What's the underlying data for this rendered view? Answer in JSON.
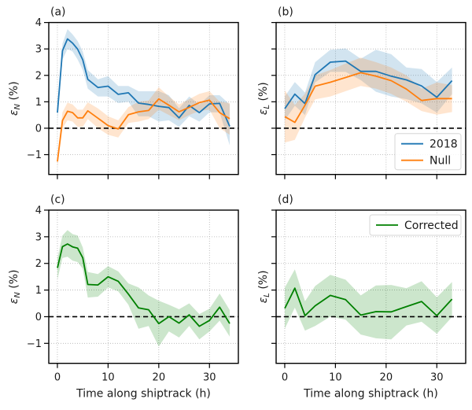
{
  "figure": {
    "xlabel": "Time along shiptrack (h)",
    "ylabel_N": "ε",
    "ylabel_N_sub": "N",
    "ylabel_L": "ε",
    "ylabel_L_sub": "L",
    "ylabel_suffix": " (%)"
  },
  "colors": {
    "s2018": "#1f77b4",
    "null": "#ff7f0e",
    "corrected": "#008000"
  },
  "chart_data": [
    {
      "type": "line",
      "panel": "(a)",
      "title": "(a)",
      "xlabel": "",
      "ylabel": "εN (%)",
      "xlim": [
        -1.7,
        35.7
      ],
      "ylim": [
        -1.75,
        4.0
      ],
      "xticks": [
        0,
        10,
        20,
        30
      ],
      "yticks": [
        -1,
        0,
        1,
        2,
        3,
        4
      ],
      "ytick_labels": [
        "−1",
        "0",
        "1",
        "2",
        "3",
        "4"
      ],
      "xtick_labels_visible": false,
      "grid": true,
      "zero_line": true,
      "legend": null,
      "series": [
        {
          "name": "2018",
          "color_key": "s2018",
          "x": [
            0,
            1,
            2,
            3,
            4,
            5,
            6,
            8,
            10,
            12,
            14,
            16,
            18,
            20,
            22,
            24,
            26,
            28,
            30,
            32,
            34
          ],
          "y": [
            0.59,
            2.93,
            3.38,
            3.22,
            2.99,
            2.59,
            1.85,
            1.54,
            1.59,
            1.28,
            1.34,
            0.95,
            0.9,
            0.83,
            0.78,
            0.39,
            0.86,
            0.59,
            0.92,
            0.94,
            0.07
          ],
          "lower": [
            0.3,
            2.6,
            3.0,
            2.9,
            2.6,
            2.2,
            1.5,
            1.2,
            1.2,
            0.95,
            1.0,
            0.45,
            0.45,
            0.25,
            0.3,
            0.05,
            0.45,
            0.25,
            0.6,
            0.6,
            -0.65
          ],
          "upper": [
            0.85,
            3.2,
            3.75,
            3.55,
            3.3,
            2.9,
            2.2,
            1.85,
            1.97,
            1.6,
            1.6,
            1.4,
            1.4,
            1.4,
            1.25,
            0.75,
            1.2,
            0.9,
            1.25,
            1.25,
            0.9
          ]
        },
        {
          "name": "Null",
          "color_key": "null",
          "x": [
            0,
            1,
            2,
            3,
            4,
            5,
            6,
            8,
            10,
            12,
            14,
            16,
            18,
            20,
            22,
            24,
            26,
            28,
            30,
            32,
            34
          ],
          "y": [
            -1.26,
            0.29,
            0.64,
            0.59,
            0.39,
            0.39,
            0.66,
            0.38,
            0.1,
            -0.03,
            0.51,
            0.62,
            0.67,
            1.11,
            0.87,
            0.62,
            0.79,
            0.97,
            1.06,
            0.59,
            0.36
          ],
          "lower": [
            -1.45,
            0.0,
            0.3,
            0.25,
            0.05,
            0.05,
            0.35,
            0.0,
            -0.25,
            -0.35,
            0.2,
            0.25,
            0.35,
            0.7,
            0.5,
            0.3,
            0.5,
            0.65,
            0.7,
            0.0,
            -0.25
          ],
          "upper": [
            -1.05,
            0.6,
            0.97,
            0.9,
            0.7,
            0.7,
            0.98,
            0.75,
            0.45,
            0.3,
            0.8,
            1.0,
            1.05,
            1.55,
            1.2,
            0.9,
            1.1,
            1.3,
            1.4,
            1.0,
            0.95
          ]
        }
      ]
    },
    {
      "type": "line",
      "panel": "(b)",
      "title": "(b)",
      "xlabel": "",
      "ylabel": "εL (%)",
      "xlim": [
        -1.7,
        35.7
      ],
      "ylim": [
        -1.75,
        4.0
      ],
      "xticks": [
        0,
        10,
        20,
        30
      ],
      "yticks": [
        -1,
        0,
        1,
        2,
        3,
        4
      ],
      "xtick_labels_visible": false,
      "ytick_labels_visible": false,
      "grid": true,
      "zero_line": true,
      "legend": {
        "position": "lower-right",
        "entries": [
          "2018",
          "Null"
        ]
      },
      "series": [
        {
          "name": "2018",
          "color_key": "s2018",
          "x": [
            0,
            2,
            4,
            6,
            9,
            12,
            15,
            18,
            21,
            24,
            27,
            30,
            33
          ],
          "y": [
            0.74,
            1.29,
            0.93,
            2.03,
            2.5,
            2.54,
            2.15,
            2.15,
            1.97,
            1.83,
            1.6,
            1.17,
            1.8
          ],
          "lower": [
            0.3,
            0.85,
            0.5,
            1.73,
            2.13,
            2.13,
            1.82,
            1.38,
            1.2,
            1.1,
            0.94,
            0.59,
            1.29
          ],
          "upper": [
            1.2,
            1.75,
            1.35,
            2.5,
            2.97,
            3.02,
            2.63,
            2.97,
            2.8,
            2.3,
            2.24,
            1.75,
            2.3
          ]
        },
        {
          "name": "Null",
          "color_key": "null",
          "x": [
            0,
            2,
            4,
            6,
            9,
            12,
            15,
            18,
            21,
            24,
            27,
            30,
            33
          ],
          "y": [
            0.44,
            0.22,
            0.87,
            1.59,
            1.74,
            1.92,
            2.1,
            1.97,
            1.8,
            1.48,
            1.05,
            1.12,
            1.12
          ],
          "lower": [
            -0.54,
            -0.44,
            0.4,
            1.09,
            1.2,
            1.4,
            1.6,
            1.5,
            1.3,
            1.0,
            0.65,
            0.51,
            0.61
          ],
          "upper": [
            1.43,
            0.88,
            1.3,
            2.0,
            2.2,
            2.45,
            2.67,
            2.5,
            2.3,
            2.0,
            1.5,
            1.73,
            1.63
          ]
        }
      ]
    },
    {
      "type": "line",
      "panel": "(c)",
      "title": "(c)",
      "xlabel": "Time along shiptrack (h)",
      "ylabel": "εN (%)",
      "xlim": [
        -1.7,
        35.7
      ],
      "ylim": [
        -1.75,
        4.0
      ],
      "xticks": [
        0,
        10,
        20,
        30
      ],
      "xtick_labels": [
        "0",
        "10",
        "20",
        "30"
      ],
      "yticks": [
        -1,
        0,
        1,
        2,
        3,
        4
      ],
      "ytick_labels": [
        "−1",
        "0",
        "1",
        "2",
        "3",
        "4"
      ],
      "grid": true,
      "zero_line": true,
      "legend": null,
      "series": [
        {
          "name": "Corrected",
          "color_key": "corrected",
          "x": [
            0,
            1,
            2,
            3,
            4,
            5,
            6,
            8,
            10,
            12,
            14,
            16,
            18,
            20,
            22,
            24,
            26,
            28,
            30,
            32,
            34
          ],
          "y": [
            1.83,
            2.63,
            2.73,
            2.62,
            2.57,
            2.21,
            1.21,
            1.19,
            1.5,
            1.33,
            0.85,
            0.33,
            0.26,
            -0.26,
            0.0,
            -0.24,
            0.07,
            -0.36,
            -0.14,
            0.36,
            -0.26
          ],
          "lower": [
            1.4,
            2.2,
            2.25,
            2.1,
            2.05,
            1.8,
            0.72,
            0.75,
            1.1,
            0.95,
            0.45,
            -0.45,
            -0.35,
            -1.12,
            -0.55,
            -0.78,
            -0.35,
            -0.85,
            -0.55,
            -0.15,
            -0.75
          ],
          "upper": [
            2.2,
            3.05,
            3.25,
            3.1,
            3.05,
            2.6,
            1.68,
            1.6,
            1.9,
            1.7,
            1.25,
            1.1,
            0.8,
            0.6,
            0.45,
            0.28,
            0.5,
            0.1,
            0.3,
            0.87,
            0.25
          ]
        }
      ]
    },
    {
      "type": "line",
      "panel": "(d)",
      "title": "(d)",
      "xlabel": "Time along shiptrack (h)",
      "ylabel": "εL (%)",
      "xlim": [
        -1.7,
        35.7
      ],
      "ylim": [
        -1.75,
        4.0
      ],
      "xticks": [
        0,
        10,
        20,
        30
      ],
      "xtick_labels": [
        "0",
        "10",
        "20",
        "30"
      ],
      "yticks": [
        -1,
        0,
        1,
        2,
        3,
        4
      ],
      "ytick_labels_visible": false,
      "grid": true,
      "zero_line": true,
      "legend": {
        "position": "upper-right",
        "entries": [
          "Corrected"
        ]
      },
      "series": [
        {
          "name": "Corrected",
          "color_key": "corrected",
          "x": [
            0,
            2,
            4,
            6,
            9,
            12,
            15,
            18,
            21,
            24,
            27,
            30,
            33
          ],
          "y": [
            0.31,
            1.07,
            0.04,
            0.41,
            0.8,
            0.64,
            0.06,
            0.19,
            0.18,
            0.38,
            0.57,
            0.04,
            0.66
          ],
          "lower": [
            -0.45,
            0.34,
            -0.52,
            -0.35,
            0.0,
            -0.11,
            -0.67,
            -0.81,
            -0.85,
            -0.33,
            -0.19,
            -0.64,
            -0.01
          ],
          "upper": [
            1.09,
            1.78,
            0.58,
            1.15,
            1.57,
            1.39,
            0.8,
            1.17,
            1.19,
            1.07,
            1.33,
            0.73,
            1.3
          ]
        }
      ]
    }
  ]
}
